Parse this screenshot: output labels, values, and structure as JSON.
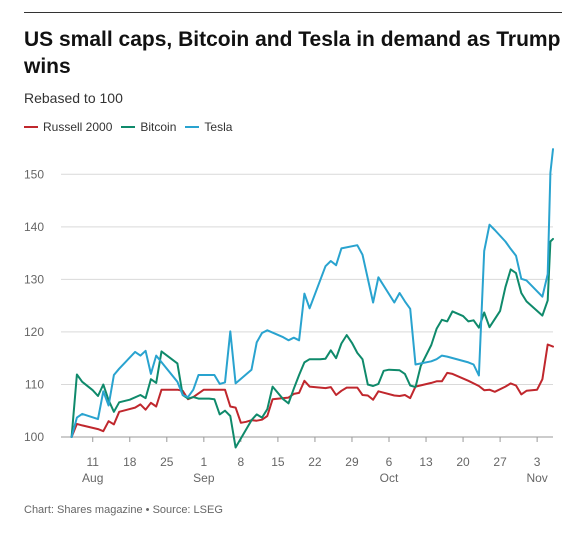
{
  "header": {
    "title": "US small caps, Bitcoin and Tesla in demand as Trump wins",
    "subtitle": "Rebased to 100"
  },
  "footer": {
    "source": "Chart: Shares magazine • Source: LSEG"
  },
  "colors": {
    "russell": "#c0272d",
    "bitcoin": "#0f8a6b",
    "tesla": "#29a3cf",
    "grid": "#d9d9d9",
    "axis": "#666666"
  },
  "chart_data": {
    "type": "line",
    "title": "US small caps, Bitcoin and Tesla in demand as Trump wins",
    "subtitle": "Rebased to 100",
    "xlabel": "",
    "ylabel": "",
    "ylim": [
      100,
      155
    ],
    "yticks": [
      100,
      110,
      120,
      130,
      140,
      150
    ],
    "xlim": [
      "2024-08-05",
      "2024-11-06"
    ],
    "xticks": [
      {
        "date": "2024-08-11",
        "day": "11",
        "month": "Aug"
      },
      {
        "date": "2024-08-18",
        "day": "18",
        "month": ""
      },
      {
        "date": "2024-08-25",
        "day": "25",
        "month": ""
      },
      {
        "date": "2024-09-01",
        "day": "1",
        "month": "Sep"
      },
      {
        "date": "2024-09-08",
        "day": "8",
        "month": ""
      },
      {
        "date": "2024-09-15",
        "day": "15",
        "month": ""
      },
      {
        "date": "2024-09-22",
        "day": "22",
        "month": ""
      },
      {
        "date": "2024-09-29",
        "day": "29",
        "month": ""
      },
      {
        "date": "2024-10-06",
        "day": "6",
        "month": "Oct"
      },
      {
        "date": "2024-10-13",
        "day": "13",
        "month": ""
      },
      {
        "date": "2024-10-20",
        "day": "20",
        "month": ""
      },
      {
        "date": "2024-10-27",
        "day": "27",
        "month": ""
      },
      {
        "date": "2024-11-03",
        "day": "3",
        "month": "Nov"
      }
    ],
    "grid": "horizontal",
    "legend_position": "top-left",
    "series": [
      {
        "name": "Russell 2000",
        "color": "#c0272d",
        "points": [
          [
            "2024-08-07",
            100
          ],
          [
            "2024-08-08",
            102.5
          ],
          [
            "2024-08-09",
            102.2
          ],
          [
            "2024-08-12",
            101.5
          ],
          [
            "2024-08-13",
            101.1
          ],
          [
            "2024-08-14",
            103.0
          ],
          [
            "2024-08-15",
            102.4
          ],
          [
            "2024-08-16",
            104.8
          ],
          [
            "2024-08-19",
            105.6
          ],
          [
            "2024-08-20",
            106.2
          ],
          [
            "2024-08-21",
            105.2
          ],
          [
            "2024-08-22",
            106.5
          ],
          [
            "2024-08-23",
            105.8
          ],
          [
            "2024-08-24",
            109.0
          ],
          [
            "2024-08-27",
            109.0
          ],
          [
            "2024-08-28",
            108.8
          ],
          [
            "2024-08-29",
            107.2
          ],
          [
            "2024-08-30",
            107.6
          ],
          [
            "2024-09-01",
            109.0
          ],
          [
            "2024-09-03",
            109.0
          ],
          [
            "2024-09-05",
            109.0
          ],
          [
            "2024-09-06",
            105.8
          ],
          [
            "2024-09-07",
            105.6
          ],
          [
            "2024-09-08",
            102.7
          ],
          [
            "2024-09-09",
            102.9
          ],
          [
            "2024-09-10",
            103.2
          ],
          [
            "2024-09-11",
            103.1
          ],
          [
            "2024-09-12",
            103.3
          ],
          [
            "2024-09-13",
            104.0
          ],
          [
            "2024-09-14",
            107.2
          ],
          [
            "2024-09-16",
            107.4
          ],
          [
            "2024-09-17",
            107.5
          ],
          [
            "2024-09-18",
            108.2
          ],
          [
            "2024-09-19",
            108.4
          ],
          [
            "2024-09-20",
            110.7
          ],
          [
            "2024-09-21",
            109.6
          ],
          [
            "2024-09-24",
            109.3
          ],
          [
            "2024-09-25",
            109.5
          ],
          [
            "2024-09-26",
            108.0
          ],
          [
            "2024-09-27",
            108.8
          ],
          [
            "2024-09-28",
            109.4
          ],
          [
            "2024-09-30",
            109.4
          ],
          [
            "2024-10-01",
            108.0
          ],
          [
            "2024-10-02",
            107.9
          ],
          [
            "2024-10-03",
            107.1
          ],
          [
            "2024-10-04",
            108.7
          ],
          [
            "2024-10-07",
            107.9
          ],
          [
            "2024-10-08",
            107.8
          ],
          [
            "2024-10-09",
            108.0
          ],
          [
            "2024-10-10",
            107.4
          ],
          [
            "2024-10-11",
            109.6
          ],
          [
            "2024-10-14",
            110.3
          ],
          [
            "2024-10-15",
            110.6
          ],
          [
            "2024-10-16",
            110.6
          ],
          [
            "2024-10-17",
            112.2
          ],
          [
            "2024-10-18",
            112.0
          ],
          [
            "2024-10-21",
            110.7
          ],
          [
            "2024-10-22",
            110.2
          ],
          [
            "2024-10-23",
            109.7
          ],
          [
            "2024-10-24",
            108.9
          ],
          [
            "2024-10-25",
            109.0
          ],
          [
            "2024-10-26",
            108.6
          ],
          [
            "2024-10-28",
            109.6
          ],
          [
            "2024-10-29",
            110.2
          ],
          [
            "2024-10-30",
            109.8
          ],
          [
            "2024-10-31",
            108.1
          ],
          [
            "2024-11-01",
            108.8
          ],
          [
            "2024-11-03",
            109.0
          ],
          [
            "2024-11-04",
            111.0
          ],
          [
            "2024-11-05",
            117.6
          ],
          [
            "2024-11-06",
            117.2
          ]
        ]
      },
      {
        "name": "Bitcoin",
        "color": "#0f8a6b",
        "points": [
          [
            "2024-08-07",
            100
          ],
          [
            "2024-08-08",
            111.9
          ],
          [
            "2024-08-09",
            110.5
          ],
          [
            "2024-08-11",
            108.9
          ],
          [
            "2024-08-12",
            107.8
          ],
          [
            "2024-08-13",
            110.0
          ],
          [
            "2024-08-14",
            107.0
          ],
          [
            "2024-08-15",
            104.8
          ],
          [
            "2024-08-16",
            106.6
          ],
          [
            "2024-08-18",
            107.1
          ],
          [
            "2024-08-20",
            108.0
          ],
          [
            "2024-08-21",
            107.4
          ],
          [
            "2024-08-22",
            111.0
          ],
          [
            "2024-08-23",
            110.3
          ],
          [
            "2024-08-24",
            116.3
          ],
          [
            "2024-08-27",
            114.0
          ],
          [
            "2024-08-28",
            108.0
          ],
          [
            "2024-08-29",
            107.3
          ],
          [
            "2024-08-30",
            107.6
          ],
          [
            "2024-08-31",
            107.3
          ],
          [
            "2024-09-02",
            107.3
          ],
          [
            "2024-09-03",
            107.2
          ],
          [
            "2024-09-04",
            104.3
          ],
          [
            "2024-09-05",
            105.0
          ],
          [
            "2024-09-06",
            104.0
          ],
          [
            "2024-09-07",
            98.0
          ],
          [
            "2024-09-10",
            103.2
          ],
          [
            "2024-09-11",
            104.3
          ],
          [
            "2024-09-12",
            103.7
          ],
          [
            "2024-09-13",
            105.3
          ],
          [
            "2024-09-14",
            109.6
          ],
          [
            "2024-09-16",
            107.2
          ],
          [
            "2024-09-17",
            106.4
          ],
          [
            "2024-09-18",
            109.2
          ],
          [
            "2024-09-19",
            111.8
          ],
          [
            "2024-09-20",
            114.2
          ],
          [
            "2024-09-21",
            114.8
          ],
          [
            "2024-09-23",
            114.8
          ],
          [
            "2024-09-24",
            114.9
          ],
          [
            "2024-09-25",
            116.5
          ],
          [
            "2024-09-26",
            115.0
          ],
          [
            "2024-09-27",
            117.8
          ],
          [
            "2024-09-28",
            119.4
          ],
          [
            "2024-09-29",
            117.9
          ],
          [
            "2024-09-30",
            116.0
          ],
          [
            "2024-10-01",
            114.8
          ],
          [
            "2024-10-02",
            110.0
          ],
          [
            "2024-10-03",
            109.7
          ],
          [
            "2024-10-04",
            110.1
          ],
          [
            "2024-10-05",
            112.6
          ],
          [
            "2024-10-06",
            112.8
          ],
          [
            "2024-10-08",
            112.7
          ],
          [
            "2024-10-09",
            112.0
          ],
          [
            "2024-10-10",
            109.8
          ],
          [
            "2024-10-11",
            109.5
          ],
          [
            "2024-10-12",
            113.5
          ],
          [
            "2024-10-14",
            117.5
          ],
          [
            "2024-10-15",
            120.6
          ],
          [
            "2024-10-16",
            122.3
          ],
          [
            "2024-10-17",
            122.0
          ],
          [
            "2024-10-18",
            123.9
          ],
          [
            "2024-10-20",
            123.0
          ],
          [
            "2024-10-21",
            122.0
          ],
          [
            "2024-10-22",
            122.2
          ],
          [
            "2024-10-23",
            120.8
          ],
          [
            "2024-10-24",
            123.7
          ],
          [
            "2024-10-25",
            120.9
          ],
          [
            "2024-10-27",
            124.0
          ],
          [
            "2024-10-28",
            128.5
          ],
          [
            "2024-10-29",
            131.9
          ],
          [
            "2024-10-30",
            131.2
          ],
          [
            "2024-10-31",
            127.4
          ],
          [
            "2024-11-01",
            125.8
          ],
          [
            "2024-11-04",
            123.1
          ],
          [
            "2024-11-05",
            126.0
          ],
          [
            "2024-11-05.5",
            137.2
          ],
          [
            "2024-11-06",
            137.7
          ]
        ]
      },
      {
        "name": "Tesla",
        "color": "#29a3cf",
        "points": [
          [
            "2024-08-07",
            100
          ],
          [
            "2024-08-08",
            103.7
          ],
          [
            "2024-08-09",
            104.4
          ],
          [
            "2024-08-12",
            103.4
          ],
          [
            "2024-08-13",
            108.7
          ],
          [
            "2024-08-14",
            106.0
          ],
          [
            "2024-08-15",
            111.8
          ],
          [
            "2024-08-16",
            113.0
          ],
          [
            "2024-08-19",
            116.2
          ],
          [
            "2024-08-20",
            115.5
          ],
          [
            "2024-08-21",
            116.4
          ],
          [
            "2024-08-22",
            112.0
          ],
          [
            "2024-08-23",
            115.5
          ],
          [
            "2024-08-27",
            110.5
          ],
          [
            "2024-08-28",
            108.0
          ],
          [
            "2024-08-29",
            107.6
          ],
          [
            "2024-08-30",
            109.0
          ],
          [
            "2024-08-31",
            111.8
          ],
          [
            "2024-09-03",
            111.8
          ],
          [
            "2024-09-04",
            110.1
          ],
          [
            "2024-09-05",
            110.4
          ],
          [
            "2024-09-06",
            120.1
          ],
          [
            "2024-09-07",
            110.2
          ],
          [
            "2024-09-10",
            112.8
          ],
          [
            "2024-09-11",
            118.0
          ],
          [
            "2024-09-12",
            119.8
          ],
          [
            "2024-09-13",
            120.3
          ],
          [
            "2024-09-16",
            119.0
          ],
          [
            "2024-09-17",
            118.4
          ],
          [
            "2024-09-18",
            118.9
          ],
          [
            "2024-09-19",
            118.4
          ],
          [
            "2024-09-20",
            127.3
          ],
          [
            "2024-09-21",
            124.5
          ],
          [
            "2024-09-24",
            132.5
          ],
          [
            "2024-09-25",
            133.5
          ],
          [
            "2024-09-26",
            132.7
          ],
          [
            "2024-09-27",
            135.9
          ],
          [
            "2024-09-30",
            136.5
          ],
          [
            "2024-10-01",
            134.7
          ],
          [
            "2024-10-03",
            125.6
          ],
          [
            "2024-10-04",
            130.4
          ],
          [
            "2024-10-07",
            125.6
          ],
          [
            "2024-10-08",
            127.4
          ],
          [
            "2024-10-09",
            125.8
          ],
          [
            "2024-10-10",
            124.4
          ],
          [
            "2024-10-11",
            113.8
          ],
          [
            "2024-10-14",
            114.4
          ],
          [
            "2024-10-15",
            114.8
          ],
          [
            "2024-10-16",
            115.5
          ],
          [
            "2024-10-17",
            115.3
          ],
          [
            "2024-10-21",
            114.2
          ],
          [
            "2024-10-22",
            113.8
          ],
          [
            "2024-10-23",
            111.7
          ],
          [
            "2024-10-24",
            135.4
          ],
          [
            "2024-10-25",
            140.4
          ],
          [
            "2024-10-26",
            139.4
          ],
          [
            "2024-10-28",
            137.2
          ],
          [
            "2024-10-29",
            135.8
          ],
          [
            "2024-10-30",
            134.5
          ],
          [
            "2024-10-31",
            130.1
          ],
          [
            "2024-11-01",
            129.8
          ],
          [
            "2024-11-04",
            126.7
          ],
          [
            "2024-11-05",
            131.0
          ],
          [
            "2024-11-05.5",
            150.3
          ],
          [
            "2024-11-06",
            154.8
          ]
        ]
      }
    ]
  }
}
